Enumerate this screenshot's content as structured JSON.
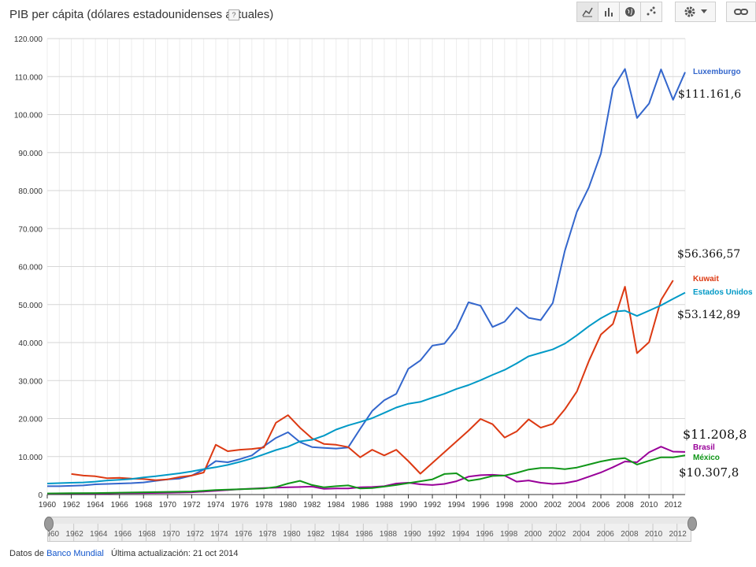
{
  "header": {
    "title": "PIB per cápita (dólares estadounidenses actuales)",
    "help": "?"
  },
  "toolbar": {
    "buttons": [
      "line-chart-icon",
      "bar-chart-icon",
      "globe-icon",
      "scatter-icon"
    ],
    "settings_icon": "gear-icon",
    "link_icon": "link-icon"
  },
  "footer": {
    "source_prefix": "Datos de",
    "source_link": "Banco Mundial",
    "updated": "Última actualización: 21 oct 2014"
  },
  "annotations": {
    "luxembourg": "$111.161,6",
    "kuwait": "$56.366,57",
    "usa": "$53.142,89",
    "brazil": "$11.208,8",
    "mexico": "$10.307,8"
  },
  "chart_data": {
    "type": "line",
    "title": "PIB per cápita (dólares estadounidenses actuales)",
    "xlim": [
      1960,
      2013
    ],
    "ylim": [
      0,
      120000
    ],
    "y_ticks": [
      0,
      10000,
      20000,
      30000,
      40000,
      50000,
      60000,
      70000,
      80000,
      90000,
      100000,
      110000,
      120000
    ],
    "y_tick_labels": [
      "0",
      "10.000",
      "20.000",
      "30.000",
      "40.000",
      "50.000",
      "60.000",
      "70.000",
      "80.000",
      "90.000",
      "100.000",
      "110.000",
      "120.000"
    ],
    "x_ticks": [
      1960,
      1962,
      1964,
      1966,
      1968,
      1970,
      1972,
      1974,
      1976,
      1978,
      1980,
      1982,
      1984,
      1986,
      1988,
      1990,
      1992,
      1994,
      1996,
      1998,
      2000,
      2002,
      2004,
      2006,
      2008,
      2010,
      2012
    ],
    "grid": true,
    "legend": "right",
    "series": [
      {
        "name": "Luxemburgo",
        "color": "#3366cc",
        "points": [
          [
            1960,
            2200
          ],
          [
            1961,
            2200
          ],
          [
            1962,
            2300
          ],
          [
            1963,
            2400
          ],
          [
            1964,
            2700
          ],
          [
            1965,
            2800
          ],
          [
            1966,
            2900
          ],
          [
            1967,
            3000
          ],
          [
            1968,
            3200
          ],
          [
            1969,
            3600
          ],
          [
            1970,
            4000
          ],
          [
            1971,
            4200
          ],
          [
            1972,
            5000
          ],
          [
            1973,
            6600
          ],
          [
            1974,
            8800
          ],
          [
            1975,
            8500
          ],
          [
            1976,
            9300
          ],
          [
            1977,
            10300
          ],
          [
            1978,
            12700
          ],
          [
            1979,
            14900
          ],
          [
            1980,
            16400
          ],
          [
            1981,
            13800
          ],
          [
            1982,
            12500
          ],
          [
            1983,
            12300
          ],
          [
            1984,
            12100
          ],
          [
            1985,
            12400
          ],
          [
            1986,
            17300
          ],
          [
            1987,
            22000
          ],
          [
            1988,
            24800
          ],
          [
            1989,
            26500
          ],
          [
            1990,
            33100
          ],
          [
            1991,
            35300
          ],
          [
            1992,
            39200
          ],
          [
            1993,
            39700
          ],
          [
            1994,
            43700
          ],
          [
            1995,
            50600
          ],
          [
            1996,
            49700
          ],
          [
            1997,
            44100
          ],
          [
            1998,
            45500
          ],
          [
            1999,
            49200
          ],
          [
            2000,
            46500
          ],
          [
            2001,
            45900
          ],
          [
            2002,
            50400
          ],
          [
            2003,
            64100
          ],
          [
            2004,
            74400
          ],
          [
            2005,
            80800
          ],
          [
            2006,
            89700
          ],
          [
            2007,
            106900
          ],
          [
            2008,
            112000
          ],
          [
            2009,
            99100
          ],
          [
            2010,
            102900
          ],
          [
            2011,
            111900
          ],
          [
            2012,
            103900
          ],
          [
            2013,
            111162
          ]
        ]
      },
      {
        "name": "Kuwait",
        "color": "#dc3912",
        "points": [
          [
            1962,
            5400
          ],
          [
            1963,
            5000
          ],
          [
            1964,
            4800
          ],
          [
            1965,
            4300
          ],
          [
            1966,
            4400
          ],
          [
            1967,
            4200
          ],
          [
            1968,
            4100
          ],
          [
            1969,
            3800
          ],
          [
            1970,
            4000
          ],
          [
            1971,
            4600
          ],
          [
            1972,
            5000
          ],
          [
            1973,
            5800
          ],
          [
            1974,
            13100
          ],
          [
            1975,
            11400
          ],
          [
            1976,
            11800
          ],
          [
            1977,
            12000
          ],
          [
            1978,
            12400
          ],
          [
            1979,
            18900
          ],
          [
            1980,
            20900
          ],
          [
            1981,
            17600
          ],
          [
            1982,
            14800
          ],
          [
            1983,
            13300
          ],
          [
            1984,
            13100
          ],
          [
            1985,
            12500
          ],
          [
            1986,
            9800
          ],
          [
            1987,
            11800
          ],
          [
            1988,
            10300
          ],
          [
            1989,
            11800
          ],
          [
            1990,
            8800
          ],
          [
            1991,
            5500
          ],
          [
            1995,
            16800
          ],
          [
            1996,
            19900
          ],
          [
            1997,
            18500
          ],
          [
            1998,
            15000
          ],
          [
            1999,
            16600
          ],
          [
            2000,
            19800
          ],
          [
            2001,
            17600
          ],
          [
            2002,
            18600
          ],
          [
            2003,
            22400
          ],
          [
            2004,
            27100
          ],
          [
            2005,
            35100
          ],
          [
            2006,
            42100
          ],
          [
            2007,
            44900
          ],
          [
            2008,
            54700
          ],
          [
            2009,
            37200
          ],
          [
            2010,
            40100
          ],
          [
            2011,
            51200
          ],
          [
            2012,
            56367
          ]
        ]
      },
      {
        "name": "Estados Unidos",
        "color": "#0099c6",
        "points": [
          [
            1960,
            2900
          ],
          [
            1961,
            3000
          ],
          [
            1962,
            3100
          ],
          [
            1963,
            3200
          ],
          [
            1964,
            3400
          ],
          [
            1965,
            3700
          ],
          [
            1966,
            3900
          ],
          [
            1967,
            4100
          ],
          [
            1968,
            4500
          ],
          [
            1969,
            4800
          ],
          [
            1970,
            5200
          ],
          [
            1971,
            5600
          ],
          [
            1972,
            6100
          ],
          [
            1973,
            6700
          ],
          [
            1974,
            7200
          ],
          [
            1975,
            7800
          ],
          [
            1976,
            8600
          ],
          [
            1977,
            9500
          ],
          [
            1978,
            10600
          ],
          [
            1979,
            11700
          ],
          [
            1980,
            12600
          ],
          [
            1981,
            14000
          ],
          [
            1982,
            14400
          ],
          [
            1983,
            15500
          ],
          [
            1984,
            17100
          ],
          [
            1985,
            18200
          ],
          [
            1986,
            19100
          ],
          [
            1987,
            20100
          ],
          [
            1988,
            21500
          ],
          [
            1989,
            22900
          ],
          [
            1990,
            23900
          ],
          [
            1991,
            24400
          ],
          [
            1992,
            25500
          ],
          [
            1993,
            26500
          ],
          [
            1994,
            27800
          ],
          [
            1995,
            28800
          ],
          [
            1996,
            30100
          ],
          [
            1997,
            31500
          ],
          [
            1998,
            32800
          ],
          [
            1999,
            34500
          ],
          [
            2000,
            36400
          ],
          [
            2001,
            37300
          ],
          [
            2002,
            38200
          ],
          [
            2003,
            39700
          ],
          [
            2004,
            41900
          ],
          [
            2005,
            44300
          ],
          [
            2006,
            46400
          ],
          [
            2007,
            48100
          ],
          [
            2008,
            48400
          ],
          [
            2009,
            47000
          ],
          [
            2010,
            48400
          ],
          [
            2011,
            49800
          ],
          [
            2012,
            51500
          ],
          [
            2013,
            53143
          ]
        ]
      },
      {
        "name": "Brasil",
        "color": "#990099",
        "points": [
          [
            1960,
            200
          ],
          [
            1962,
            300
          ],
          [
            1964,
            250
          ],
          [
            1966,
            350
          ],
          [
            1968,
            400
          ],
          [
            1970,
            450
          ],
          [
            1972,
            600
          ],
          [
            1974,
            1000
          ],
          [
            1976,
            1400
          ],
          [
            1978,
            1700
          ],
          [
            1980,
            1900
          ],
          [
            1982,
            2100
          ],
          [
            1983,
            1500
          ],
          [
            1984,
            1600
          ],
          [
            1985,
            1600
          ],
          [
            1986,
            1900
          ],
          [
            1987,
            2000
          ],
          [
            1988,
            2200
          ],
          [
            1989,
            2900
          ],
          [
            1990,
            3100
          ],
          [
            1991,
            2700
          ],
          [
            1992,
            2500
          ],
          [
            1993,
            2800
          ],
          [
            1994,
            3500
          ],
          [
            1995,
            4700
          ],
          [
            1996,
            5100
          ],
          [
            1997,
            5200
          ],
          [
            1998,
            5000
          ],
          [
            1999,
            3400
          ],
          [
            2000,
            3700
          ],
          [
            2001,
            3100
          ],
          [
            2002,
            2800
          ],
          [
            2003,
            3000
          ],
          [
            2004,
            3600
          ],
          [
            2005,
            4700
          ],
          [
            2006,
            5800
          ],
          [
            2007,
            7200
          ],
          [
            2008,
            8700
          ],
          [
            2009,
            8500
          ],
          [
            2010,
            11100
          ],
          [
            2011,
            12600
          ],
          [
            2012,
            11300
          ],
          [
            2013,
            11209
          ]
        ]
      },
      {
        "name": "México",
        "color": "#109618",
        "points": [
          [
            1960,
            300
          ],
          [
            1962,
            350
          ],
          [
            1964,
            400
          ],
          [
            1966,
            500
          ],
          [
            1968,
            600
          ],
          [
            1970,
            700
          ],
          [
            1972,
            800
          ],
          [
            1974,
            1200
          ],
          [
            1976,
            1400
          ],
          [
            1978,
            1600
          ],
          [
            1979,
            2000
          ],
          [
            1980,
            2900
          ],
          [
            1981,
            3600
          ],
          [
            1982,
            2500
          ],
          [
            1983,
            1900
          ],
          [
            1984,
            2200
          ],
          [
            1985,
            2400
          ],
          [
            1986,
            1600
          ],
          [
            1987,
            1700
          ],
          [
            1988,
            2100
          ],
          [
            1989,
            2500
          ],
          [
            1990,
            3000
          ],
          [
            1991,
            3500
          ],
          [
            1992,
            4000
          ],
          [
            1993,
            5400
          ],
          [
            1994,
            5600
          ],
          [
            1995,
            3600
          ],
          [
            1996,
            4100
          ],
          [
            1997,
            4900
          ],
          [
            1998,
            5000
          ],
          [
            1999,
            5700
          ],
          [
            2000,
            6600
          ],
          [
            2001,
            7000
          ],
          [
            2002,
            7000
          ],
          [
            2003,
            6700
          ],
          [
            2004,
            7100
          ],
          [
            2005,
            7900
          ],
          [
            2006,
            8700
          ],
          [
            2007,
            9300
          ],
          [
            2008,
            9600
          ],
          [
            2009,
            7900
          ],
          [
            2010,
            8900
          ],
          [
            2011,
            9800
          ],
          [
            2012,
            9800
          ],
          [
            2013,
            10308
          ]
        ]
      }
    ]
  }
}
